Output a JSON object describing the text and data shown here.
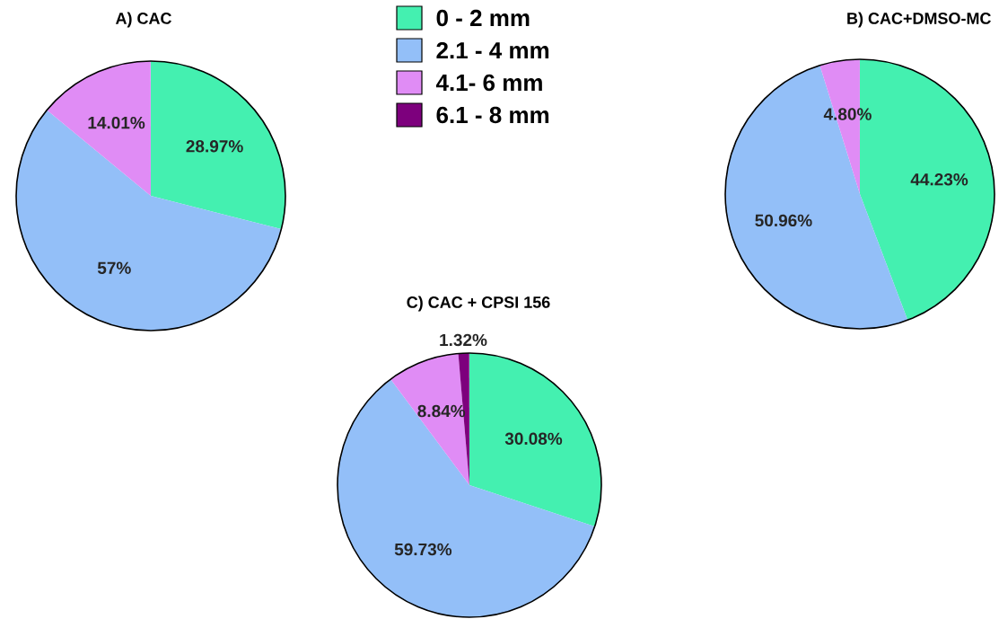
{
  "chart_data": [
    {
      "type": "pie",
      "title": "A) CAC",
      "values": [
        28.97,
        57,
        14.01
      ],
      "value_labels": [
        "28.97%",
        "57%",
        "14.01%"
      ],
      "colors": [
        "#44f0b0",
        "#93bff8",
        "#e08cf5"
      ]
    },
    {
      "type": "pie",
      "title": "B) CAC+DMSO-MC",
      "values": [
        44.23,
        50.96,
        4.8
      ],
      "value_labels": [
        "44.23%",
        "50.96%",
        "4.80%"
      ],
      "colors": [
        "#44f0b0",
        "#93bff8",
        "#e08cf5"
      ]
    },
    {
      "type": "pie",
      "title": "C) CAC + CPSI 156",
      "categories": [
        "0 - 2 mm",
        "2.1 - 4 mm",
        "4.1- 6 mm",
        "6.1 - 8 mm"
      ],
      "values": [
        30.08,
        59.73,
        8.84,
        1.32
      ],
      "value_labels": [
        "30.08%",
        "59.73%",
        "8.84%",
        "1.32%"
      ],
      "colors": [
        "#44f0b0",
        "#93bff8",
        "#e08cf5",
        "#7d007d"
      ],
      "legend": "top"
    }
  ]
}
